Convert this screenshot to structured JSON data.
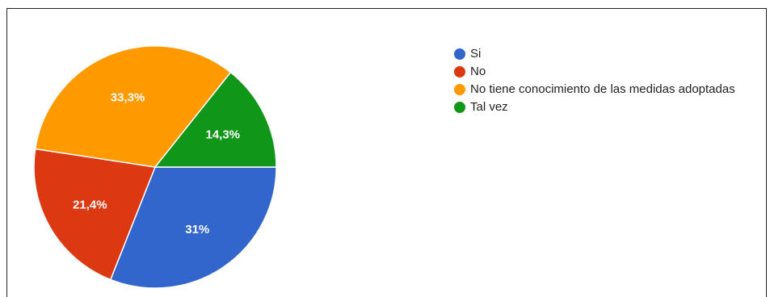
{
  "chart_data": {
    "type": "pie",
    "title": "",
    "slices": [
      {
        "label": "Si",
        "value": 31,
        "display": "31%",
        "color": "#3366CC"
      },
      {
        "label": "No",
        "value": 21.4,
        "display": "21,4%",
        "color": "#DC3912"
      },
      {
        "label": "No tiene conocimiento de las medidas adoptadas",
        "value": 33.3,
        "display": "33,3%",
        "color": "#FF9900"
      },
      {
        "label": "Tal vez",
        "value": 14.3,
        "display": "14,3%",
        "color": "#109618"
      }
    ],
    "legend_position": "right"
  }
}
